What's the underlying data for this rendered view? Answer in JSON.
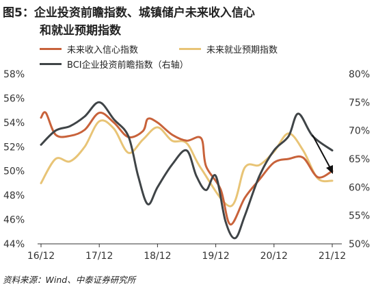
{
  "title_lines": [
    "图5：企业投资前瞻指数、城镇储户未来收入信心",
    "和就业预期指数"
  ],
  "source": "资料来源：Wind、中泰证券研究所",
  "chart_data": {
    "type": "line",
    "x_tick_labels": [
      "16/12",
      "17/12",
      "18/12",
      "19/12",
      "20/12",
      "21/12"
    ],
    "y_left": {
      "range": [
        44,
        58
      ],
      "ticks": [
        44,
        46,
        48,
        50,
        52,
        54,
        56,
        58
      ],
      "tick_labels": [
        "44%",
        "46%",
        "48%",
        "50%",
        "52%",
        "54%",
        "56%",
        "58%"
      ]
    },
    "y_right": {
      "range": [
        50,
        80
      ],
      "ticks": [
        50,
        55,
        60,
        65,
        70,
        75,
        80
      ],
      "tick_labels": [
        "50%",
        "55%",
        "60%",
        "65%",
        "70%",
        "75%",
        "80%"
      ]
    },
    "grid": false,
    "legend_placement": "top",
    "annotation": "downward-arrow",
    "series": [
      {
        "name": "未来收入信心指数",
        "axis": "left",
        "color": "#c8623a",
        "points": [
          [
            "2016-12",
            54.4
          ],
          [
            "2017-01",
            54.8
          ],
          [
            "2017-03",
            53.0
          ],
          [
            "2017-06",
            52.9
          ],
          [
            "2017-09",
            53.4
          ],
          [
            "2017-12",
            54.8
          ],
          [
            "2018-03",
            54.0
          ],
          [
            "2018-06",
            52.8
          ],
          [
            "2018-09",
            53.3
          ],
          [
            "2018-10",
            54.3
          ],
          [
            "2018-12",
            54.0
          ],
          [
            "2019-03",
            53.0
          ],
          [
            "2019-06",
            52.5
          ],
          [
            "2019-09",
            52.7
          ],
          [
            "2019-10",
            50.4
          ],
          [
            "2020-01",
            48.5
          ],
          [
            "2020-03",
            45.6
          ],
          [
            "2020-06",
            47.8
          ],
          [
            "2020-09",
            49.3
          ],
          [
            "2020-12",
            50.7
          ],
          [
            "2021-03",
            51.0
          ],
          [
            "2021-06",
            51.1
          ],
          [
            "2021-09",
            49.5
          ],
          [
            "2021-12",
            50.0
          ]
        ]
      },
      {
        "name": "未来就业预期指数",
        "axis": "left",
        "color": "#e8c476",
        "points": [
          [
            "2016-12",
            49.0
          ],
          [
            "2017-03",
            51.0
          ],
          [
            "2017-06",
            50.8
          ],
          [
            "2017-09",
            52.0
          ],
          [
            "2017-12",
            54.1
          ],
          [
            "2018-03",
            53.5
          ],
          [
            "2018-06",
            51.5
          ],
          [
            "2018-09",
            52.6
          ],
          [
            "2018-12",
            53.6
          ],
          [
            "2019-03",
            52.5
          ],
          [
            "2019-06",
            52.3
          ],
          [
            "2019-09",
            50.2
          ],
          [
            "2020-03",
            47.1
          ],
          [
            "2020-06",
            50.3
          ],
          [
            "2020-09",
            50.5
          ],
          [
            "2020-12",
            51.6
          ],
          [
            "2021-03",
            53.1
          ],
          [
            "2021-06",
            51.7
          ],
          [
            "2021-09",
            49.4
          ],
          [
            "2021-12",
            49.2
          ]
        ]
      },
      {
        "name": "BCI企业投资前瞻指数（右轴）",
        "axis": "right",
        "color": "#3f4447",
        "points": [
          [
            "2016-12",
            67.5
          ],
          [
            "2017-03",
            70.0
          ],
          [
            "2017-06",
            70.8
          ],
          [
            "2017-09",
            72.5
          ],
          [
            "2017-12",
            75.0
          ],
          [
            "2018-03",
            72.0
          ],
          [
            "2018-06",
            69.0
          ],
          [
            "2018-08",
            62.0
          ],
          [
            "2018-10",
            57.0
          ],
          [
            "2018-12",
            60.0
          ],
          [
            "2019-03",
            64.0
          ],
          [
            "2019-06",
            66.5
          ],
          [
            "2019-08",
            62.0
          ],
          [
            "2019-10",
            59.5
          ],
          [
            "2019-12",
            62.0
          ],
          [
            "2020-02",
            54.0
          ],
          [
            "2020-04",
            51.0
          ],
          [
            "2020-06",
            55.0
          ],
          [
            "2020-09",
            62.0
          ],
          [
            "2020-12",
            66.5
          ],
          [
            "2021-03",
            69.0
          ],
          [
            "2021-05",
            73.0
          ],
          [
            "2021-08",
            69.0
          ],
          [
            "2021-12",
            66.5
          ]
        ]
      }
    ]
  }
}
